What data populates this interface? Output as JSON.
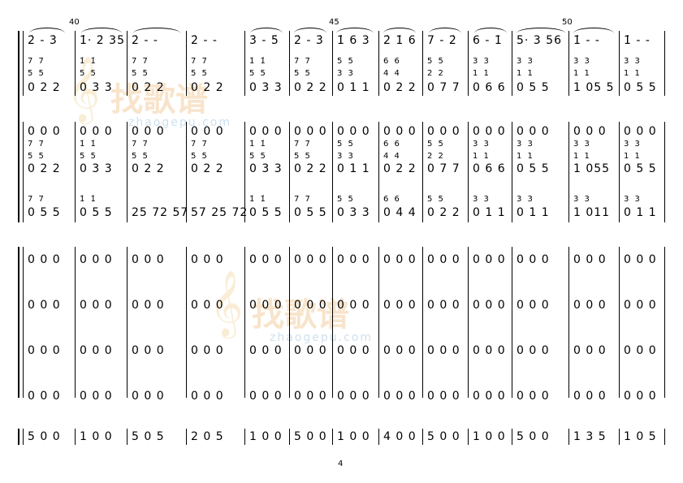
{
  "page_number": "4",
  "measure_numbers": [
    "40",
    "45",
    "50"
  ],
  "watermark": {
    "title": "找歌谱",
    "url": "zhaogepu.com"
  },
  "system1": {
    "melody": [
      "2̇ - 3̇",
      "1̇· 2̇ 35",
      "2̇ - -",
      "2̇ - -",
      "3̇ - 5̇",
      "2̇ - 3̇",
      "1̇ 6 3",
      "2̇ 1̇ 6",
      "7 - 2̇",
      "6 - 1̇",
      "5· 3 56",
      "1̇ - -",
      "1̇ - -"
    ],
    "chord_top": [
      "7 7",
      "1̇ 1̇",
      "7 7",
      "7 7",
      "1̇ 1̇",
      "7 7",
      "5 5",
      "6 6",
      "5 5",
      "3 3",
      "3 3",
      "3 3",
      "3 3"
    ],
    "chord_mid": [
      "5 5",
      "5 5",
      "5 5",
      "5 5",
      "5 5",
      "5 5",
      "3 3",
      "4 4",
      "2 2",
      "1 1",
      "1 1",
      "1 1",
      "1 1"
    ],
    "bass": [
      "0 2 2",
      "0 3 3",
      "0 2 2",
      "0 2 2",
      "0 3 3",
      "0 2 2",
      "0 1 1",
      "0 2 2",
      "0 7 7",
      "0 6 6",
      "0 5 5",
      "1 05 5",
      "0 5 5"
    ]
  },
  "system2": {
    "rest_line": [
      "0 0 0",
      "0 0 0",
      "0 0 0",
      "0 0 0",
      "0 0 0",
      "0 0 0",
      "0 0 0",
      "0 0 0",
      "0 0 0",
      "0 0 0",
      "0 0 0",
      "0 0 0",
      "0 0 0"
    ],
    "chord_top": [
      "7 7",
      "1̇ 1̇",
      "7 7",
      "7 7",
      "1̇ 1̇",
      "7 7",
      "5 5",
      "6 6",
      "5 5",
      "3 3",
      "3 3",
      "3 3",
      "3 3"
    ],
    "chord_mid": [
      "5 5",
      "5 5",
      "5 5",
      "5 5",
      "5 5",
      "5 5",
      "3 3",
      "4 4",
      "2 2",
      "1 1",
      "1 1",
      "1 1",
      "1 1"
    ],
    "bass": [
      "0 2 2",
      "0 3 3",
      "0 2 2",
      "0 2 2",
      "0 3 3",
      "0 2 2",
      "0 1 1",
      "0 2 2",
      "0 7 7",
      "0 6 6",
      "0 5 5",
      "1 055",
      "0 5 5"
    ],
    "low_top": [
      "7 7",
      "1̇ 1̇",
      "",
      "",
      "1̇ 1̇",
      "7 7",
      "5 5",
      "6 6",
      "5 5",
      "3 3",
      "3 3",
      "3 3",
      "3 3"
    ],
    "low": [
      "0 5 5",
      "0 5 5",
      "25 72 57",
      "57 25 72",
      "0 5 5",
      "0 5 5",
      "0 3 3",
      "0 4 4",
      "0 2 2",
      "0 1 1",
      "0 1 1",
      "1 011",
      "0 1 1"
    ]
  },
  "system3": {
    "rows": [
      [
        "0 0 0",
        "0 0 0",
        "0 0 0",
        "0 0 0",
        "0 0 0",
        "0 0 0",
        "0 0 0",
        "0 0 0",
        "0 0 0",
        "0 0 0",
        "0 0 0",
        "0 0 0",
        "0 0 0"
      ],
      [
        "0 0 0",
        "0 0 0",
        "0 0 0",
        "0 0 0",
        "0 0 0",
        "0 0 0",
        "0 0 0",
        "0 0 0",
        "0 0 0",
        "0 0 0",
        "0 0 0",
        "0 0 0",
        "0 0 0"
      ],
      [
        "0 0 0",
        "0 0 0",
        "0 0 0",
        "0 0 0",
        "0 0 0",
        "0 0 0",
        "0 0 0",
        "0 0 0",
        "0 0 0",
        "0 0 0",
        "0 0 0",
        "0 0 0",
        "0 0 0"
      ],
      [
        "0 0 0",
        "0 0 0",
        "0 0 0",
        "0 0 0",
        "0 0 0",
        "0 0 0",
        "0 0 0",
        "0 0 0",
        "0 0 0",
        "0 0 0",
        "0 0 0",
        "0 0 0",
        "0 0 0"
      ]
    ]
  },
  "system4": {
    "bass": [
      "5 0 0",
      "1 0 0",
      "5 0 5",
      "2 0 5",
      "1 0 0",
      "5 0 0",
      "1 0 0",
      "4 0 0",
      "5 0 0",
      "1 0 0",
      "5 0 0",
      "1 3 5",
      "1 0 5"
    ]
  }
}
